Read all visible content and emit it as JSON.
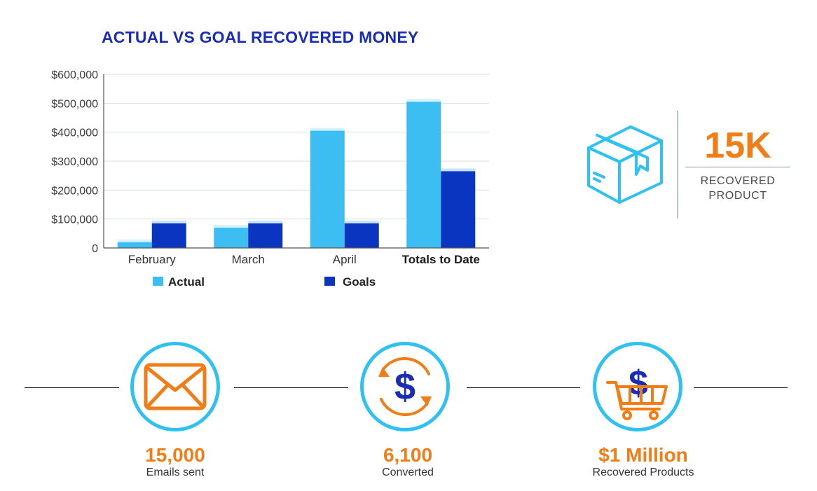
{
  "chart_data": {
    "type": "bar",
    "title": "ACTUAL VS GOAL RECOVERED MONEY",
    "categories": [
      "February",
      "March",
      "April",
      "Totals to Date"
    ],
    "series": [
      {
        "name": "Actual",
        "values": [
          20000,
          70000,
          405000,
          505000
        ],
        "color": "#3cbef2"
      },
      {
        "name": "Goals",
        "values": [
          85000,
          85000,
          85000,
          265000
        ],
        "color": "#0a35c0"
      }
    ],
    "ylim": [
      0,
      600000
    ],
    "yticks": [
      "0",
      "$100,000",
      "$200,000",
      "$300,000",
      "$400,000",
      "$500,000",
      "$600,000"
    ],
    "ytick_values": [
      0,
      100000,
      200000,
      300000,
      400000,
      500000,
      600000
    ],
    "grid": true,
    "legend": "bottom"
  },
  "kpi": {
    "value": "15K",
    "label_line1": "RECOVERED",
    "label_line2": "PRODUCT",
    "icon": "box-icon"
  },
  "stats": [
    {
      "value": "15,000",
      "caption": "Emails sent",
      "icon": "envelope-icon"
    },
    {
      "value": "6,100",
      "caption": "Converted",
      "icon": "dollar-cycle-icon"
    },
    {
      "value": "$1 Million",
      "caption": "Recovered Products",
      "icon": "cart-dollar-icon"
    }
  ],
  "colors": {
    "accent_orange": "#f07d16",
    "title_blue": "#1a2db5",
    "circle_blue": "#2ec1f2"
  }
}
